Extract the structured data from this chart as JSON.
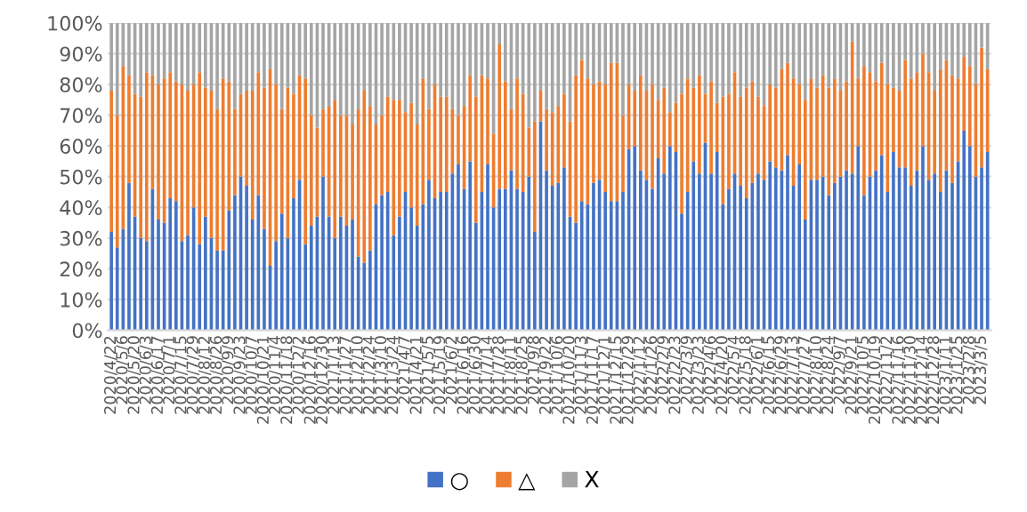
{
  "chart_data": {
    "type": "bar",
    "stacked": true,
    "categories": [
      "2020/4/22",
      null,
      "2020/5/6",
      null,
      "2020/5/20",
      null,
      "2020/6/3",
      null,
      "2020/6/17",
      null,
      "2020/7/1",
      null,
      "2020/7/15",
      null,
      "2020/7/29",
      null,
      "2020/8/12",
      null,
      "2020/8/26",
      null,
      "2020/9/9",
      null,
      "2020/9/23",
      null,
      "2020/10/7",
      null,
      "2020/10/21",
      null,
      "2020/11/4",
      null,
      "2020/11/18",
      null,
      "2020/12/2",
      null,
      "2020/12/16",
      null,
      "2020/12/30",
      null,
      "2021/1/13",
      null,
      "2021/1/27",
      null,
      "2021/2/10",
      null,
      "2021/2/24",
      null,
      "2021/3/10",
      null,
      "2021/3/24",
      null,
      "2021/4/7",
      null,
      "2021/4/21",
      null,
      "2021/5/5",
      null,
      "2021/5/19",
      null,
      "2021/6/2",
      null,
      "2021/6/16",
      null,
      "2021/6/30",
      null,
      "2021/7/14",
      null,
      "2021/7/28",
      null,
      "2021/8/11",
      null,
      "2021/8/25",
      null,
      "2021/9/8",
      null,
      "2021/9/22",
      null,
      "2021/10/6",
      null,
      "2021/10/20",
      null,
      "2021/11/3",
      null,
      "2021/11/17",
      null,
      "2021/12/1",
      null,
      "2021/12/15",
      null,
      "2021/12/29",
      null,
      "2022/1/12",
      null,
      "2022/1/26",
      null,
      "2022/2/9",
      null,
      "2022/2/23",
      null,
      "2022/3/9",
      null,
      "2022/3/23",
      null,
      "2022/4/6",
      null,
      "2022/4/20",
      null,
      "2022/5/4",
      null,
      "2022/5/18",
      null,
      "2022/6/1",
      null,
      "2022/6/15",
      null,
      "2022/6/29",
      null,
      "2022/7/13",
      null,
      "2022/7/27",
      null,
      "2022/8/10",
      null,
      "2022/8/24",
      null,
      "2022/9/7",
      null,
      "2022/9/21",
      null,
      "2022/10/5",
      null,
      "2022/10/19",
      null,
      "2022/11/2",
      null,
      "2022/11/16",
      null,
      "2022/11/30",
      null,
      "2022/12/14",
      null,
      "2022/12/28",
      null,
      "2023/1/11",
      null,
      "2023/1/25",
      null,
      "2023/2/8",
      null,
      "2023/3/5",
      null
    ],
    "series": [
      {
        "name": "○",
        "color": "#4472c4",
        "values": [
          32,
          27,
          33,
          48,
          37,
          30,
          29,
          46,
          36,
          35,
          43,
          42,
          29,
          31,
          40,
          28,
          37,
          30,
          26,
          26,
          39,
          44,
          50,
          47,
          36,
          44,
          33,
          21,
          29,
          38,
          30,
          43,
          49,
          28,
          34,
          37,
          50,
          37,
          30,
          37,
          34,
          36,
          24,
          22,
          26,
          41,
          44,
          45,
          31,
          37,
          45,
          40,
          34,
          41,
          49,
          43,
          45,
          45,
          51,
          54,
          46,
          55,
          35,
          45,
          54,
          40,
          46,
          46,
          52,
          46,
          45,
          50,
          32,
          68,
          52,
          47,
          48,
          53,
          37,
          35,
          42,
          41,
          48,
          49,
          45,
          42,
          42,
          45,
          59,
          60,
          52,
          49,
          46,
          56,
          51,
          60,
          58,
          38,
          45,
          55,
          51,
          61,
          51,
          58,
          41,
          46,
          51,
          47,
          43,
          48,
          51,
          49,
          55,
          53,
          52,
          57,
          47,
          54,
          36,
          49,
          49,
          50,
          44,
          48,
          50,
          52,
          51,
          60,
          44,
          50,
          52,
          57,
          45,
          58,
          53,
          53,
          47,
          52,
          60,
          49,
          51,
          45,
          52,
          48,
          55,
          65,
          60,
          50,
          53,
          58
        ]
      },
      {
        "name": "△",
        "color": "#ed7d31",
        "values": [
          46,
          43,
          53,
          35,
          40,
          46,
          55,
          37,
          44,
          47,
          41,
          39,
          51,
          47,
          40,
          56,
          42,
          48,
          46,
          56,
          42,
          28,
          27,
          31,
          42,
          40,
          46,
          64,
          51,
          34,
          49,
          34,
          34,
          54,
          36,
          29,
          22,
          36,
          45,
          33,
          36,
          31,
          48,
          56,
          47,
          26,
          26,
          31,
          44,
          38,
          26,
          34,
          33,
          41,
          23,
          37,
          31,
          31,
          21,
          16,
          27,
          28,
          41,
          38,
          28,
          24,
          47,
          35,
          20,
          36,
          32,
          16,
          36,
          10,
          20,
          24,
          25,
          24,
          31,
          48,
          46,
          41,
          32,
          32,
          35,
          45,
          45,
          25,
          21,
          18,
          31,
          29,
          34,
          19,
          28,
          11,
          16,
          39,
          37,
          24,
          32,
          16,
          30,
          16,
          35,
          31,
          33,
          29,
          36,
          33,
          25,
          24,
          25,
          26,
          33,
          30,
          35,
          26,
          39,
          33,
          30,
          33,
          35,
          34,
          28,
          29,
          43,
          22,
          42,
          34,
          29,
          30,
          35,
          21,
          25,
          35,
          35,
          32,
          30,
          35,
          27,
          40,
          36,
          35,
          27,
          24,
          26,
          30,
          39,
          27
        ]
      },
      {
        "name": "X",
        "color": "#a5a5a5",
        "values": [
          22,
          30,
          14,
          17,
          23,
          24,
          16,
          17,
          20,
          18,
          16,
          19,
          20,
          22,
          20,
          16,
          21,
          22,
          28,
          18,
          19,
          28,
          23,
          22,
          22,
          16,
          21,
          15,
          20,
          28,
          21,
          23,
          17,
          18,
          30,
          34,
          28,
          27,
          25,
          30,
          30,
          33,
          28,
          22,
          27,
          33,
          30,
          24,
          25,
          25,
          29,
          26,
          33,
          18,
          28,
          20,
          24,
          24,
          28,
          30,
          27,
          17,
          24,
          17,
          18,
          36,
          7,
          19,
          28,
          18,
          23,
          34,
          32,
          22,
          28,
          29,
          27,
          23,
          32,
          17,
          12,
          18,
          20,
          19,
          20,
          13,
          13,
          30,
          20,
          22,
          17,
          22,
          20,
          25,
          21,
          29,
          26,
          23,
          18,
          21,
          17,
          23,
          19,
          26,
          24,
          23,
          16,
          24,
          21,
          19,
          24,
          27,
          20,
          21,
          15,
          13,
          18,
          20,
          25,
          18,
          21,
          17,
          21,
          18,
          22,
          19,
          6,
          18,
          14,
          16,
          19,
          13,
          20,
          21,
          22,
          12,
          18,
          16,
          10,
          16,
          22,
          15,
          12,
          17,
          18,
          11,
          14,
          20,
          8,
          15
        ]
      }
    ],
    "ylim": [
      0,
      100
    ],
    "yticks": [
      {
        "value": 0,
        "label": "0%"
      },
      {
        "value": 10,
        "label": "10%"
      },
      {
        "value": 20,
        "label": "20%"
      },
      {
        "value": 30,
        "label": "30%"
      },
      {
        "value": 40,
        "label": "40%"
      },
      {
        "value": 50,
        "label": "50%"
      },
      {
        "value": 60,
        "label": "60%"
      },
      {
        "value": 70,
        "label": "70%"
      },
      {
        "value": 80,
        "label": "80%"
      },
      {
        "value": 90,
        "label": "90%"
      },
      {
        "value": 100,
        "label": "100%"
      }
    ],
    "grid": "y",
    "legend": "bottom"
  }
}
